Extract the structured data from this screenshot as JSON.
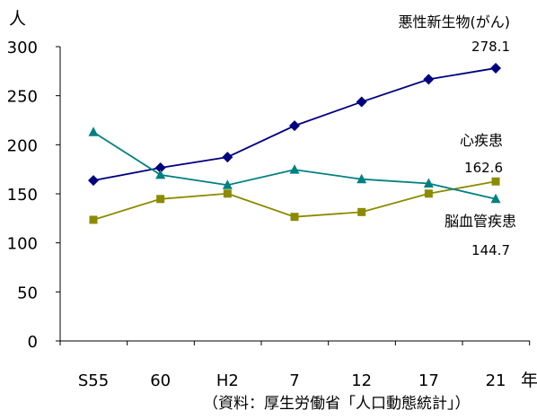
{
  "chart_data": {
    "type": "line",
    "title": "",
    "ylabel": "人",
    "xlabel": "年",
    "source": "（資料：厚生労働省「人口動態統計」）",
    "categories": [
      "S55",
      "60",
      "H2",
      "7",
      "12",
      "17",
      "21"
    ],
    "ylim": [
      0,
      300
    ],
    "yticks": [
      0,
      50,
      100,
      150,
      200,
      250,
      300
    ],
    "grid": false,
    "series": [
      {
        "name": "悪性新生物(がん)",
        "marker": "diamond",
        "color": "#000080",
        "values": [
          163.6,
          176.5,
          187.4,
          219.4,
          243.7,
          266.7,
          278.1
        ],
        "end_label": "278.1"
      },
      {
        "name": "心疾患",
        "marker": "square",
        "color": "#8B8B00",
        "values": [
          123.5,
          144.7,
          150.2,
          126.5,
          131.4,
          150.2,
          162.6
        ],
        "end_label": "162.6"
      },
      {
        "name": "脳血管疾患",
        "marker": "triangle",
        "color": "#008080",
        "values": [
          212.9,
          169.3,
          158.9,
          174.6,
          164.9,
          160.5,
          144.7
        ],
        "end_label": "144.7"
      }
    ]
  }
}
